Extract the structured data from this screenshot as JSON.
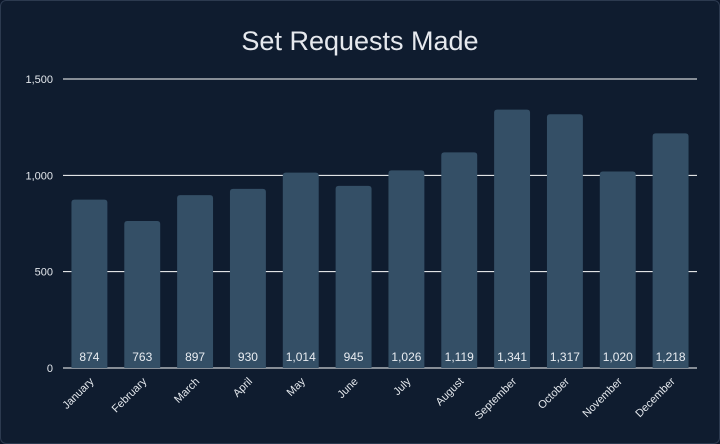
{
  "chart_data": {
    "type": "bar",
    "title": "Set Requests Made",
    "xlabel": "",
    "ylabel": "",
    "categories": [
      "January",
      "February",
      "March",
      "April",
      "May",
      "June",
      "July",
      "August",
      "September",
      "October",
      "November",
      "December"
    ],
    "values": [
      874,
      763,
      897,
      930,
      1014,
      945,
      1026,
      1119,
      1341,
      1317,
      1020,
      1218
    ],
    "value_labels": [
      "874",
      "763",
      "897",
      "930",
      "1,014",
      "945",
      "1,026",
      "1,119",
      "1,341",
      "1,317",
      "1,020",
      "1,218"
    ],
    "ylim": [
      0,
      1500
    ],
    "yticks": [
      0,
      500,
      1000,
      1500
    ],
    "ytick_labels": [
      "0",
      "500",
      "1,000",
      "1,500"
    ],
    "grid": true,
    "legend": "none",
    "colors": {
      "background": "#0f1c2f",
      "bar": "#344f66",
      "grid": "#ffffff",
      "text": "#e3e7ec"
    }
  }
}
